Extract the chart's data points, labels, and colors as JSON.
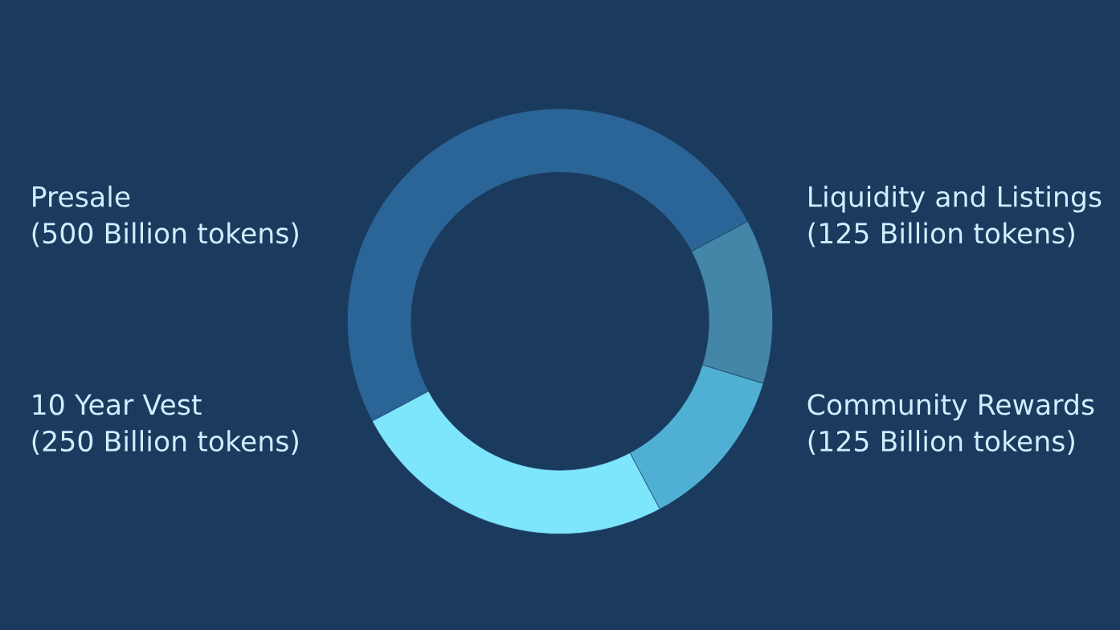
{
  "chart_data": {
    "type": "donut",
    "categories": [
      "Presale",
      "Liquidity and Listings",
      "Community Rewards",
      "10 Year Vest"
    ],
    "values": [
      500,
      125,
      125,
      250
    ],
    "value_labels": [
      "(500 Billion tokens)",
      "(125 Billion tokens)",
      "(125 Billion tokens)",
      "(250 Billion tokens)"
    ],
    "colors": [
      "#2b6496",
      "#4386a8",
      "#50b0d4",
      "#7de6fc"
    ],
    "legend": false
  }
}
